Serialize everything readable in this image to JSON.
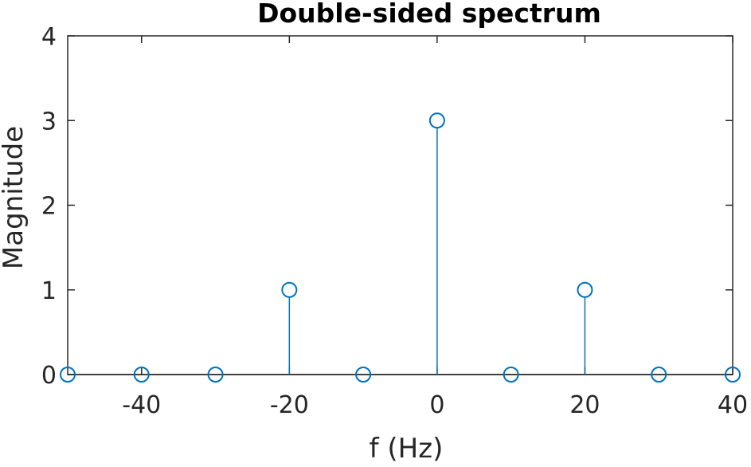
{
  "chart_data": {
    "type": "stem",
    "title": "Double-sided spectrum",
    "xlabel": "f (Hz)",
    "ylabel": "Magnitude",
    "xlim": [
      -50,
      40
    ],
    "ylim": [
      0,
      4
    ],
    "x_ticks": [
      -40,
      -20,
      0,
      20,
      40
    ],
    "x_tick_labels": [
      "-40",
      "-20",
      "0",
      "20",
      "40"
    ],
    "y_ticks": [
      0,
      1,
      2,
      3,
      4
    ],
    "y_tick_labels": [
      "0",
      "1",
      "2",
      "3",
      "4"
    ],
    "grid": false,
    "marker": "circle",
    "colors": {
      "stem": "#0072BD",
      "axis": "#262626",
      "title": "#000000"
    },
    "series": [
      {
        "x": [
          -50,
          -40,
          -30,
          -20,
          -10,
          0,
          10,
          20,
          30,
          40
        ],
        "y": [
          0,
          0,
          0,
          1,
          0,
          3,
          0,
          1,
          0,
          0
        ]
      }
    ]
  }
}
